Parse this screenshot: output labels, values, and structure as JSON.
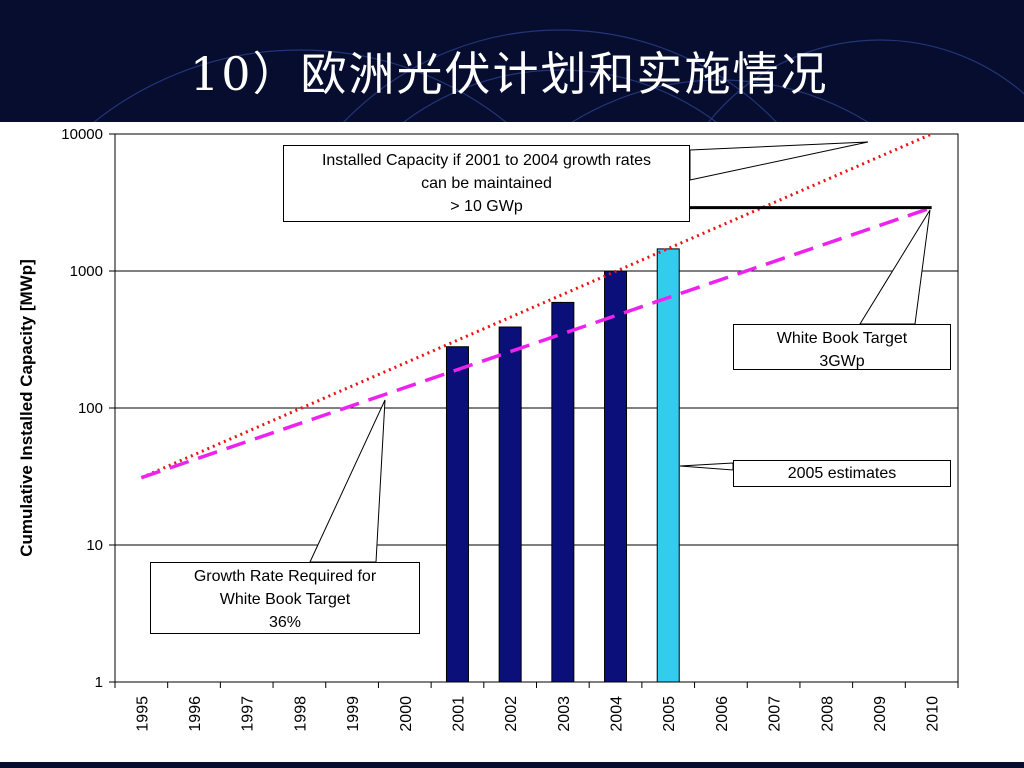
{
  "slide": {
    "title": "10）欧洲光伏计划和实施情况"
  },
  "chart_data": {
    "type": "bar",
    "scale": "log",
    "ylim": [
      1,
      10000
    ],
    "yticks": [
      "1",
      "10",
      "100",
      "1000",
      "10000"
    ],
    "ylabel": "Cumulative Installed Capacity [MWp]",
    "xlabel": "",
    "grid": true,
    "categories": [
      "1995",
      "1996",
      "1997",
      "1998",
      "1999",
      "2000",
      "2001",
      "2002",
      "2003",
      "2004",
      "2005",
      "2006",
      "2007",
      "2008",
      "2009",
      "2010"
    ],
    "bars": [
      {
        "year": "2001",
        "value": 280,
        "kind": "actual"
      },
      {
        "year": "2002",
        "value": 390,
        "kind": "actual"
      },
      {
        "year": "2003",
        "value": 590,
        "kind": "actual"
      },
      {
        "year": "2004",
        "value": 1000,
        "kind": "actual"
      },
      {
        "year": "2005",
        "value": 1450,
        "kind": "estimate"
      }
    ],
    "lines": [
      {
        "label": "Installed Capacity if 2001 to 2004 growth rates can be maintained",
        "style": "dotted",
        "color": "#ee1111",
        "points": [
          {
            "x": "1995",
            "y": 31
          },
          {
            "x": "2010",
            "y": 10000
          }
        ]
      },
      {
        "label": "Growth Rate Required for White Book Target",
        "style": "dashed",
        "color": "#ee22ee",
        "points": [
          {
            "x": "1995",
            "y": 31
          },
          {
            "x": "2010",
            "y": 2900
          }
        ]
      },
      {
        "label": "White Book Target",
        "style": "solid",
        "color": "#000000",
        "points": [
          {
            "x": "2005",
            "y": 2900
          },
          {
            "x": "2010",
            "y": 2900
          }
        ]
      }
    ],
    "annotations": {
      "growth_maintained": [
        "Installed Capacity if 2001 to 2004 growth rates",
        "can be maintained",
        "> 10 GWp"
      ],
      "white_book": [
        "White Book Target",
        "3GWp"
      ],
      "estimates": [
        "2005 estimates"
      ],
      "required": [
        "Growth Rate Required for",
        "White Book Target",
        "36%"
      ]
    },
    "colors": {
      "actual_bar": "#0a0f7a",
      "estimate_bar": "#33ccee",
      "grid": "#000000"
    }
  }
}
